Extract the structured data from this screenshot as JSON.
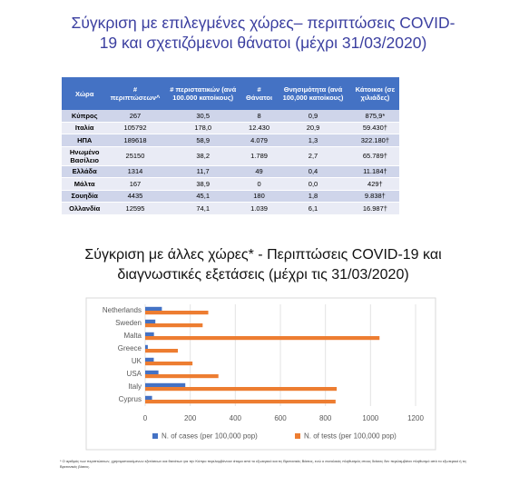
{
  "title": "Σύγκριση με επιλεγμένες χώρες– περιπτώσεις COVID-19 και σχετιζόμενοι θάνατοι (μέχρι 31/03/2020)",
  "table": {
    "header": [
      "Χώρα",
      "# περιπτώσεων^",
      "# περιστατικών (ανά 100.000 κατοίκους)",
      "# Θάνατοι",
      "Θνησιμότητα (ανά 100,000 κατοίκους)",
      "Κάτοικοι (σε χιλιάδες)"
    ],
    "rows": [
      [
        "Κύπρος",
        "267",
        "30,5",
        "8",
        "0,9",
        "875,9*"
      ],
      [
        "Ιταλία",
        "105792",
        "178,0",
        "12.430",
        "20,9",
        "59.430†"
      ],
      [
        "ΗΠΑ",
        "189618",
        "58,9",
        "4.079",
        "1,3",
        "322.180†"
      ],
      [
        "Ηνωμένο Βασίλειο",
        "25150",
        "38,2",
        "1.789",
        "2,7",
        "65.789†"
      ],
      [
        "Ελλάδα",
        "1314",
        "11,7",
        "49",
        "0,4",
        "11.184†"
      ],
      [
        "Μάλτα",
        "167",
        "38,9",
        "0",
        "0,0",
        "429†"
      ],
      [
        "Σουηδία",
        "4435",
        "45,1",
        "180",
        "1,8",
        "9.838†"
      ],
      [
        "Ολλανδία",
        "12595",
        "74,1",
        "1.039",
        "6,1",
        "16.987†"
      ]
    ]
  },
  "chart_data": {
    "type": "bar",
    "horizontal": true,
    "title": "Σύγκριση με άλλες χώρες* - Περιπτώσεις COVID-19 και διαγνωστικές εξετάσεις (μέχρι τις 31/03/2020)",
    "categories": [
      "Netherlands",
      "Sweden",
      "Malta",
      "Greece",
      "UK",
      "USA",
      "Italy",
      "Cyprus"
    ],
    "series": [
      {
        "name": "N. of cases (per 100,000 pop)",
        "color": "#4472c4",
        "values": [
          74.1,
          45.1,
          38.9,
          11.7,
          38.2,
          58.9,
          178,
          30.5
        ]
      },
      {
        "name": "N. of tests (per 100,000 pop)",
        "color": "#ed7d31",
        "values": [
          280,
          255,
          1040,
          145,
          210,
          325,
          850,
          845
        ]
      }
    ],
    "xlim": [
      0,
      1200
    ],
    "xticks": [
      0,
      200,
      400,
      600,
      800,
      1000,
      1200
    ],
    "grid": true
  },
  "footnote": "* Ο αριθμός των περιπτώσεων, χρησιμοποιούμενων εξετάσεων και θανάτων για την Κύπρο περιλαμβάνουν άτομα από το εξωτερικό και τις Βρετανικές Βάσεις, ενώ ο συνολικός πληθυσμός στους δείκτες δεν περιλαμβάνει πληθυσμό από το εξωτερικό ή τις Βρετανικές βάσεις."
}
